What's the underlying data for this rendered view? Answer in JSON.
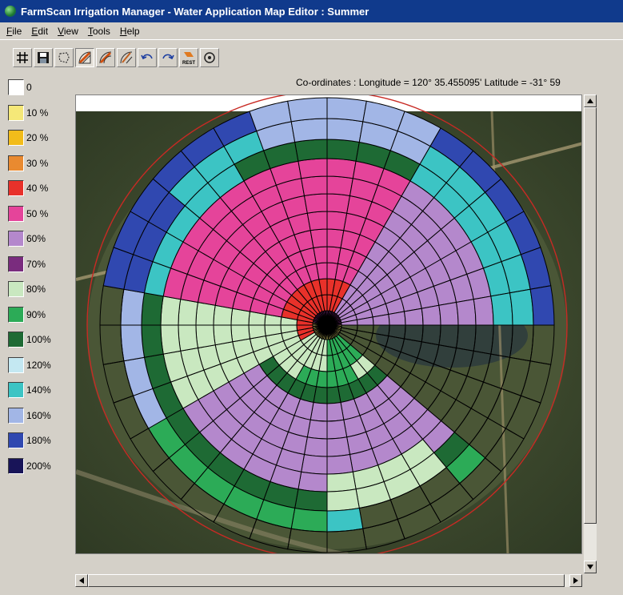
{
  "window": {
    "title": "FarmScan Irrigation Manager - Water Application Map Editor : Summer"
  },
  "menu": [
    {
      "label": "File"
    },
    {
      "label": "Edit"
    },
    {
      "label": "View"
    },
    {
      "label": "Tools"
    },
    {
      "label": "Help"
    }
  ],
  "toolbar": {
    "buttons": [
      {
        "icon": "grid-icon"
      },
      {
        "icon": "save-icon"
      },
      {
        "icon": "lasso-select-icon"
      },
      {
        "icon": "paint-sector-icon",
        "pressed": true
      },
      {
        "icon": "paint-ring-icon"
      },
      {
        "icon": "paint-arc-icon"
      },
      {
        "icon": "undo-icon"
      },
      {
        "icon": "redo-icon"
      },
      {
        "icon": "reset-icon",
        "label": "REST"
      },
      {
        "icon": "zoom-icon"
      }
    ]
  },
  "status": {
    "coordinates": "Co-ordinates : Longitude = 120° 35.455095'  Latitude = -31° 59"
  },
  "legend": [
    {
      "label": "0",
      "color": "#ffffff"
    },
    {
      "label": "10 %",
      "color": "#f5e878"
    },
    {
      "label": "20 %",
      "color": "#f2bc1a"
    },
    {
      "label": "30 %",
      "color": "#e98a30"
    },
    {
      "label": "40 %",
      "color": "#e8312a"
    },
    {
      "label": "50 %",
      "color": "#e5449a"
    },
    {
      "label": "60%",
      "color": "#b488cc"
    },
    {
      "label": "70%",
      "color": "#7a2c7e"
    },
    {
      "label": "80%",
      "color": "#c9e8c0"
    },
    {
      "label": "90%",
      "color": "#2cab57"
    },
    {
      "label": "100%",
      "color": "#1e6a34"
    },
    {
      "label": "120%",
      "color": "#c4e8f2"
    },
    {
      "label": "140%",
      "color": "#3cc4c4"
    },
    {
      "label": "160%",
      "color": "#a2b6e6"
    },
    {
      "label": "180%",
      "color": "#3048b0"
    },
    {
      "label": "200%",
      "color": "#181458"
    }
  ]
}
